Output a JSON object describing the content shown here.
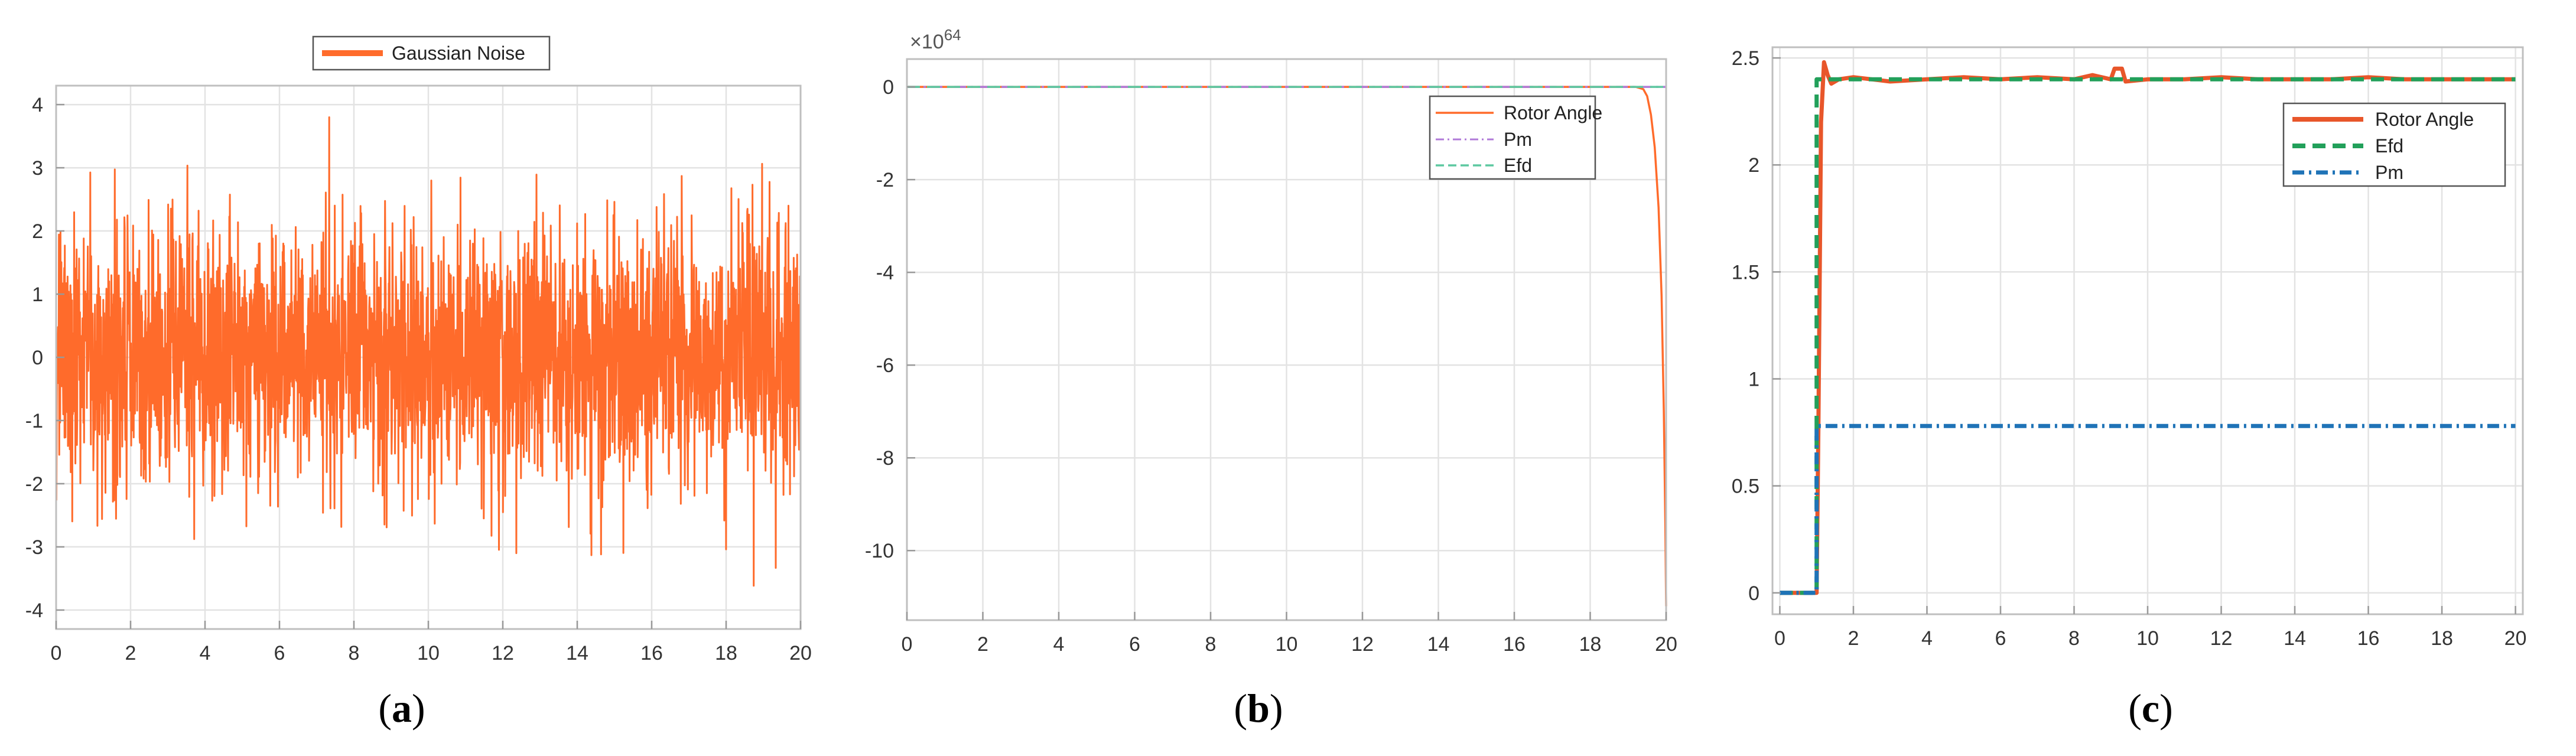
{
  "chart_data": [
    {
      "panel_label": "a",
      "type": "line",
      "xlim": [
        0,
        20
      ],
      "ylim": [
        -4.3,
        4.3
      ],
      "x_ticks": [
        0,
        2,
        4,
        6,
        8,
        10,
        12,
        14,
        16,
        18,
        20
      ],
      "y_ticks": [
        -4,
        -3,
        -2,
        -1,
        0,
        1,
        2,
        3,
        4
      ],
      "grid": true,
      "legend_position": "top-center",
      "series": [
        {
          "name": "Gaussian Noise",
          "color": "#ff6b2b",
          "style": "solid",
          "sampling": "random normal noise, mean 0, std ≈ 1",
          "x_range": [
            0,
            20
          ],
          "mean": 0,
          "std": 1.0,
          "max": 3.8,
          "min": -3.9
        }
      ]
    },
    {
      "panel_label": "b",
      "type": "line",
      "xlim": [
        0,
        20
      ],
      "ylim": [
        -11.5,
        0.6
      ],
      "y_scale_exponent": "×10^64",
      "exponent_base": "×10",
      "exponent_power": "64",
      "x_ticks": [
        0,
        2,
        4,
        6,
        8,
        10,
        12,
        14,
        16,
        18,
        20
      ],
      "y_ticks": [
        -10,
        -8,
        -6,
        -4,
        -2,
        0
      ],
      "grid": true,
      "legend_position": "top-right",
      "series": [
        {
          "name": "Rotor Angle",
          "color": "#ff6b2b",
          "style": "solid",
          "points": [
            [
              0,
              0
            ],
            [
              19.2,
              0
            ],
            [
              19.4,
              -0.05
            ],
            [
              19.5,
              -0.2
            ],
            [
              19.6,
              -0.6
            ],
            [
              19.7,
              -1.3
            ],
            [
              19.8,
              -2.6
            ],
            [
              19.88,
              -4.5
            ],
            [
              19.94,
              -7.0
            ],
            [
              19.98,
              -9.5
            ],
            [
              20,
              -11.2
            ]
          ]
        },
        {
          "name": "Pm",
          "color": "#b07ad8",
          "style": "dashdot",
          "points": [
            [
              0,
              0
            ],
            [
              20,
              0
            ]
          ]
        },
        {
          "name": "Efd",
          "color": "#5dc8a0",
          "style": "dashed",
          "points": [
            [
              0,
              0
            ],
            [
              20,
              0
            ]
          ]
        }
      ]
    },
    {
      "panel_label": "c",
      "type": "line",
      "xlim": [
        -0.2,
        20.2
      ],
      "ylim": [
        -0.1,
        2.55
      ],
      "x_ticks": [
        0,
        2,
        4,
        6,
        8,
        10,
        12,
        14,
        16,
        18,
        20
      ],
      "y_ticks": [
        0,
        0.5,
        1,
        1.5,
        2,
        2.5
      ],
      "grid": true,
      "legend_position": "top-right",
      "series": [
        {
          "name": "Rotor Angle",
          "color": "#e8562a",
          "style": "solid",
          "points": [
            [
              0,
              0
            ],
            [
              1.0,
              0
            ],
            [
              1.05,
              0.8
            ],
            [
              1.12,
              2.2
            ],
            [
              1.2,
              2.48
            ],
            [
              1.3,
              2.42
            ],
            [
              1.4,
              2.38
            ],
            [
              1.6,
              2.4
            ],
            [
              2,
              2.41
            ],
            [
              3,
              2.39
            ],
            [
              4,
              2.4
            ],
            [
              5,
              2.41
            ],
            [
              6,
              2.4
            ],
            [
              7,
              2.41
            ],
            [
              8,
              2.4
            ],
            [
              8.5,
              2.42
            ],
            [
              9,
              2.4
            ],
            [
              9.1,
              2.45
            ],
            [
              9.3,
              2.45
            ],
            [
              9.4,
              2.39
            ],
            [
              10,
              2.4
            ],
            [
              11,
              2.4
            ],
            [
              12,
              2.41
            ],
            [
              13,
              2.4
            ],
            [
              14,
              2.4
            ],
            [
              15,
              2.4
            ],
            [
              16,
              2.41
            ],
            [
              17,
              2.4
            ],
            [
              18,
              2.4
            ],
            [
              19,
              2.4
            ],
            [
              20,
              2.4
            ]
          ]
        },
        {
          "name": "Efd",
          "color": "#22a05a",
          "style": "dashed",
          "points": [
            [
              0,
              0
            ],
            [
              1.0,
              0
            ],
            [
              1.0,
              2.4
            ],
            [
              20,
              2.4
            ]
          ]
        },
        {
          "name": "Pm",
          "color": "#1f73b7",
          "style": "dashdot",
          "points": [
            [
              0,
              0
            ],
            [
              1.0,
              0
            ],
            [
              1.0,
              0.78
            ],
            [
              20,
              0.78
            ]
          ]
        }
      ]
    }
  ]
}
